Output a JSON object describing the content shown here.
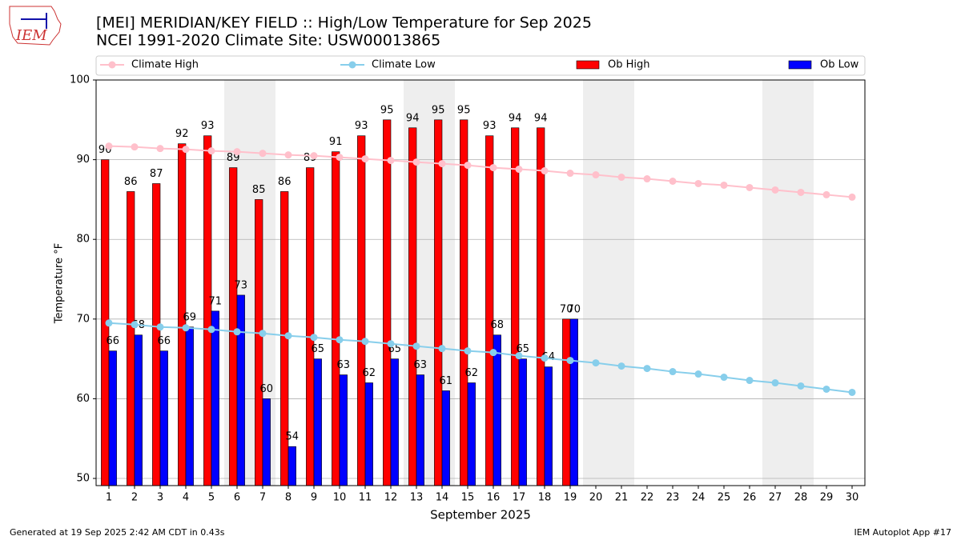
{
  "chart_data": {
    "type": "bar",
    "title": "[MEI] MERIDIAN/KEY FIELD :: High/Low Temperature for Sep 2025",
    "subtitle": "NCEI 1991-2020 Climate Site: USW00013865",
    "logo_text": "IEM",
    "x_label": "September 2025",
    "y_label": "Temperature °F",
    "footer_left": "Generated at 19 Sep 2025 2:42 AM CDT in 0.43s",
    "footer_right": "IEM Autoplot App #17",
    "x": [
      1,
      2,
      3,
      4,
      5,
      6,
      7,
      8,
      9,
      10,
      11,
      12,
      13,
      14,
      15,
      16,
      17,
      18,
      19,
      20,
      21,
      22,
      23,
      24,
      25,
      26,
      27,
      28,
      29,
      30
    ],
    "xlim": [
      0.5,
      30.5
    ],
    "xticks": [
      1,
      2,
      3,
      4,
      5,
      6,
      7,
      8,
      9,
      10,
      11,
      12,
      13,
      14,
      15,
      16,
      17,
      18,
      19,
      20,
      21,
      22,
      23,
      24,
      25,
      26,
      27,
      28,
      29,
      30
    ],
    "ylim": [
      49.1,
      100
    ],
    "yticks": [
      50,
      60,
      70,
      80,
      90,
      100
    ],
    "grid": true,
    "shaded_ranges": [
      [
        5.5,
        7.5
      ],
      [
        12.5,
        14.5
      ],
      [
        19.5,
        21.5
      ],
      [
        26.5,
        28.5
      ]
    ],
    "series": [
      {
        "name": "Climate High",
        "kind": "line",
        "color": "#ffc0cb",
        "values": [
          91.7,
          91.6,
          91.4,
          91.3,
          91.1,
          91.0,
          90.8,
          90.6,
          90.5,
          90.3,
          90.1,
          89.9,
          89.7,
          89.5,
          89.3,
          89.0,
          88.8,
          88.6,
          88.3,
          88.1,
          87.8,
          87.6,
          87.3,
          87.0,
          86.8,
          86.5,
          86.2,
          85.9,
          85.6,
          85.3
        ]
      },
      {
        "name": "Climate Low",
        "kind": "line",
        "color": "#87ceeb",
        "values": [
          69.5,
          69.3,
          69.0,
          68.9,
          68.7,
          68.4,
          68.2,
          67.9,
          67.7,
          67.4,
          67.2,
          66.9,
          66.6,
          66.3,
          66.0,
          65.8,
          65.4,
          65.1,
          64.8,
          64.5,
          64.1,
          63.8,
          63.4,
          63.1,
          62.7,
          62.3,
          62.0,
          61.6,
          61.2,
          60.8
        ]
      },
      {
        "name": "Ob High",
        "kind": "bar",
        "color": "#ff0000",
        "values": [
          90,
          86,
          87,
          92,
          93,
          89,
          85,
          86,
          89,
          91,
          93,
          95,
          94,
          95,
          95,
          93,
          94,
          94,
          70,
          null,
          null,
          null,
          null,
          null,
          null,
          null,
          null,
          null,
          null,
          null
        ]
      },
      {
        "name": "Ob Low",
        "kind": "bar",
        "color": "#0000ff",
        "values": [
          66,
          68,
          66,
          69,
          71,
          73,
          60,
          54,
          65,
          63,
          62,
          65,
          63,
          61,
          62,
          68,
          65,
          64,
          70,
          null,
          null,
          null,
          null,
          null,
          null,
          null,
          null,
          null,
          null,
          null
        ]
      }
    ]
  }
}
